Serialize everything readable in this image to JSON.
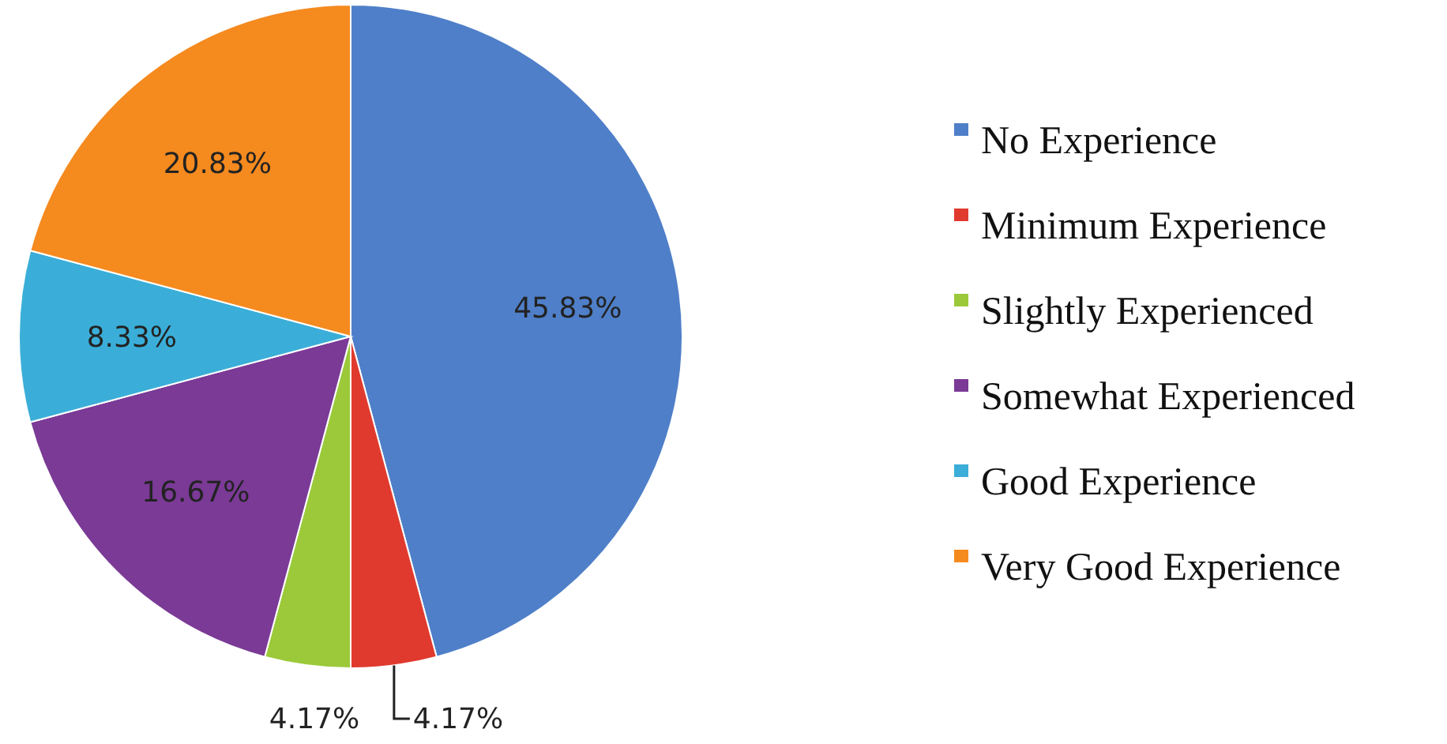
{
  "chart_data": {
    "type": "pie",
    "categories": [
      "No Experience",
      "Minimum Experience",
      "Slightly Experienced",
      "Somewhat Experienced",
      "Good Experience",
      "Very Good Experience"
    ],
    "values": [
      45.83,
      4.17,
      4.17,
      16.67,
      8.33,
      20.83
    ],
    "colors": [
      "#4f7fc8",
      "#e03a2e",
      "#9bc93a",
      "#7a3a96",
      "#3aaed8",
      "#f58a1f"
    ],
    "value_labels": [
      "45.83%",
      "4.17%",
      "4.17%",
      "16.67%",
      "8.33%",
      "20.83%"
    ],
    "legend": "right"
  }
}
